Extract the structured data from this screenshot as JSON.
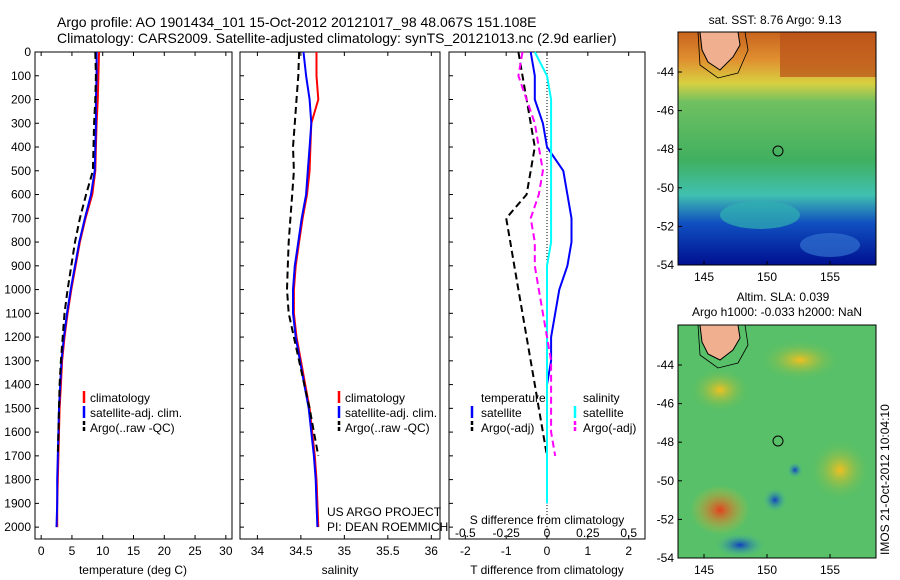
{
  "header": {
    "title_line1": "Argo profile: AO 1901434_101 15-Oct-2012 20121017_98 48.067S 151.108E",
    "title_line2": "Climatology: CARS2009. Satellite-adjusted climatology: synTS_20121013.nc (2.9d earlier)"
  },
  "colors": {
    "climatology": "#ff0000",
    "satellite": "#0000ff",
    "argo": "#000000",
    "sat_salinity": "#00ffff",
    "argo_salinity": "#ff00ff"
  },
  "depth_ticks": [
    0,
    100,
    200,
    300,
    400,
    500,
    600,
    700,
    800,
    900,
    1000,
    1100,
    1200,
    1300,
    1400,
    1500,
    1600,
    1700,
    1800,
    1900,
    2000
  ],
  "legend": {
    "climatology": "climatology",
    "satellite_adj": "satellite-adj. clim.",
    "argo_raw": "Argo(..raw -QC)",
    "temperature_hdr": "temperature",
    "salinity_hdr": "salinity",
    "satellite": "satellite",
    "argo_adj": "Argo(-adj)"
  },
  "credits": {
    "line1": "US ARGO PROJECT",
    "line2": "PI: DEAN ROEMMICH"
  },
  "maps": {
    "sst_title": "sat. SST: 8.76 Argo: 9.13",
    "sla_title_line1": "Altim. SLA: 0.039",
    "sla_title_line2": "Argo h1000: -0.033 h2000: NaN",
    "lat_ticks": [
      "-44",
      "-46",
      "-48",
      "-50",
      "-52",
      "-54"
    ],
    "lon_ticks": [
      "145",
      "150",
      "155"
    ],
    "stamp": "IMOS 21-Oct-2012 10:04:10"
  },
  "chart_data": [
    {
      "type": "line",
      "name": "temperature-panel",
      "xlabel": "temperature (deg C)",
      "ylabel": "",
      "xlim": [
        -1,
        31
      ],
      "ylim": [
        2050,
        0
      ],
      "x_ticks": [
        0,
        5,
        10,
        15,
        20,
        25,
        30
      ],
      "series": [
        {
          "name": "climatology",
          "style": "solid",
          "color": "#ff0000",
          "x": [
            9.4,
            9.3,
            9.2,
            9.0,
            8.9,
            8.8,
            8.3,
            7.2,
            6.3,
            5.6,
            4.9,
            4.3,
            3.8,
            3.4,
            3.2,
            3.0,
            2.9,
            2.8,
            2.7,
            2.6,
            2.6
          ],
          "y": [
            0,
            100,
            200,
            300,
            400,
            500,
            600,
            700,
            800,
            900,
            1000,
            1100,
            1200,
            1300,
            1400,
            1500,
            1600,
            1700,
            1800,
            1900,
            2000
          ]
        },
        {
          "name": "satellite-adj. clim.",
          "style": "solid",
          "color": "#0000ff",
          "x": [
            9.0,
            9.0,
            8.9,
            8.9,
            8.8,
            8.7,
            8.1,
            7.1,
            6.2,
            5.5,
            4.8,
            4.2,
            3.7,
            3.3,
            3.1,
            2.9,
            2.8,
            2.7,
            2.6,
            2.6,
            2.5
          ],
          "y": [
            0,
            100,
            200,
            300,
            400,
            500,
            600,
            700,
            800,
            900,
            1000,
            1100,
            1200,
            1300,
            1400,
            1500,
            1600,
            1700,
            1800,
            1900,
            2000
          ]
        },
        {
          "name": "Argo(..raw -QC)",
          "style": "dashed",
          "color": "#000000",
          "x": [
            8.8,
            8.9,
            8.8,
            8.6,
            8.5,
            8.4,
            7.3,
            6.3,
            5.5,
            4.9,
            4.3,
            3.8,
            3.5,
            3.2,
            3.0,
            2.9,
            2.8,
            2.7
          ],
          "y": [
            0,
            100,
            200,
            300,
            400,
            500,
            600,
            700,
            800,
            900,
            1000,
            1100,
            1200,
            1300,
            1400,
            1500,
            1600,
            1700
          ]
        }
      ]
    },
    {
      "type": "line",
      "name": "salinity-panel",
      "xlabel": "salinity",
      "ylabel": "",
      "xlim": [
        33.8,
        36.1
      ],
      "ylim": [
        2050,
        0
      ],
      "x_ticks": [
        34,
        34.5,
        35,
        35.5,
        36
      ],
      "series": [
        {
          "name": "climatology",
          "style": "solid",
          "color": "#ff0000",
          "x": [
            34.68,
            34.68,
            34.7,
            34.62,
            34.61,
            34.6,
            34.57,
            34.52,
            34.48,
            34.44,
            34.42,
            34.42,
            34.45,
            34.5,
            34.55,
            34.6,
            34.63,
            34.66,
            34.68,
            34.69,
            34.7
          ],
          "y": [
            0,
            100,
            200,
            300,
            400,
            500,
            600,
            700,
            800,
            900,
            1000,
            1100,
            1200,
            1300,
            1400,
            1500,
            1600,
            1700,
            1800,
            1900,
            2000
          ]
        },
        {
          "name": "satellite-adj. clim.",
          "style": "solid",
          "color": "#0000ff",
          "x": [
            34.53,
            34.56,
            34.6,
            34.62,
            34.6,
            34.58,
            34.56,
            34.51,
            34.47,
            34.43,
            34.41,
            34.41,
            34.44,
            34.49,
            34.54,
            34.59,
            34.62,
            34.65,
            34.67,
            34.68,
            34.69
          ],
          "y": [
            0,
            100,
            200,
            300,
            400,
            500,
            600,
            700,
            800,
            900,
            1000,
            1100,
            1200,
            1300,
            1400,
            1500,
            1600,
            1700,
            1800,
            1900,
            2000
          ]
        },
        {
          "name": "Argo(..raw -QC)",
          "style": "dashed",
          "color": "#000000",
          "x": [
            34.48,
            34.47,
            34.45,
            34.43,
            34.41,
            34.42,
            34.4,
            34.38,
            34.36,
            34.35,
            34.34,
            34.36,
            34.42,
            34.48,
            34.54,
            34.6,
            34.65,
            34.7
          ],
          "y": [
            0,
            100,
            200,
            300,
            400,
            500,
            600,
            700,
            800,
            900,
            1000,
            1100,
            1200,
            1300,
            1400,
            1500,
            1600,
            1700
          ]
        }
      ]
    },
    {
      "type": "line",
      "name": "difference-panel",
      "xlabel": "T difference from climatology",
      "xlabel_top": "S difference from climatology",
      "ylabel": "",
      "xlim": [
        -2.4,
        2.4
      ],
      "ylim": [
        2050,
        0
      ],
      "x_ticks": [
        -2,
        -1,
        0,
        1,
        2
      ],
      "x_ticks_s": [
        "-0.5",
        "-0.25",
        "0",
        "0.25",
        "0.5"
      ],
      "x_ticks_s_pos": [
        -2,
        -1,
        0,
        1,
        2
      ],
      "series": [
        {
          "name": "temperature satellite",
          "style": "solid",
          "color": "#0000ff",
          "x": [
            -0.4,
            -0.3,
            -0.3,
            -0.1,
            0.0,
            0.4,
            0.5,
            0.6,
            0.6,
            0.5,
            0.3,
            0.2,
            0.1,
            0.1,
            0.0,
            0.0,
            0.0,
            0.0,
            0.0,
            0.0
          ],
          "y": [
            0,
            100,
            200,
            300,
            400,
            500,
            600,
            700,
            800,
            900,
            1000,
            1100,
            1200,
            1300,
            1400,
            1500,
            1600,
            1700,
            1800,
            1900
          ]
        },
        {
          "name": "temperature Argo(-adj)",
          "style": "dashed",
          "color": "#000000",
          "x": [
            -0.7,
            -0.6,
            -0.5,
            -0.4,
            -0.3,
            -0.4,
            -0.5,
            -1.0,
            -0.9,
            -0.8,
            -0.7,
            -0.6,
            -0.5,
            -0.4,
            -0.3,
            -0.2,
            -0.1,
            0.0
          ],
          "y": [
            0,
            100,
            200,
            300,
            400,
            500,
            600,
            700,
            800,
            900,
            1000,
            1100,
            1200,
            1300,
            1400,
            1500,
            1600,
            1700
          ]
        },
        {
          "name": "salinity satellite",
          "style": "solid",
          "color": "#00ffff",
          "x": [
            -0.3,
            0.0,
            0.1,
            0.1,
            0.1,
            0.1,
            0.1,
            0.1,
            0.1,
            0.0,
            0.0,
            0.0,
            0.0,
            0.0,
            0.0,
            0.0,
            0.0,
            0.0,
            0.0,
            0.0
          ],
          "y": [
            0,
            100,
            200,
            300,
            400,
            500,
            600,
            700,
            800,
            900,
            1000,
            1100,
            1200,
            1300,
            1400,
            1500,
            1600,
            1700,
            1800,
            1900
          ]
        },
        {
          "name": "salinity Argo(-adj)",
          "style": "dashed",
          "color": "#ff00ff",
          "x": [
            -0.6,
            -0.7,
            -0.5,
            -0.3,
            -0.2,
            -0.1,
            -0.2,
            -0.4,
            -0.3,
            -0.3,
            -0.2,
            -0.1,
            0.0,
            0.1,
            0.1,
            0.1,
            0.1,
            0.2
          ],
          "y": [
            0,
            100,
            200,
            300,
            400,
            500,
            600,
            700,
            800,
            900,
            1000,
            1100,
            1200,
            1300,
            1400,
            1500,
            1600,
            1700
          ]
        }
      ]
    }
  ]
}
